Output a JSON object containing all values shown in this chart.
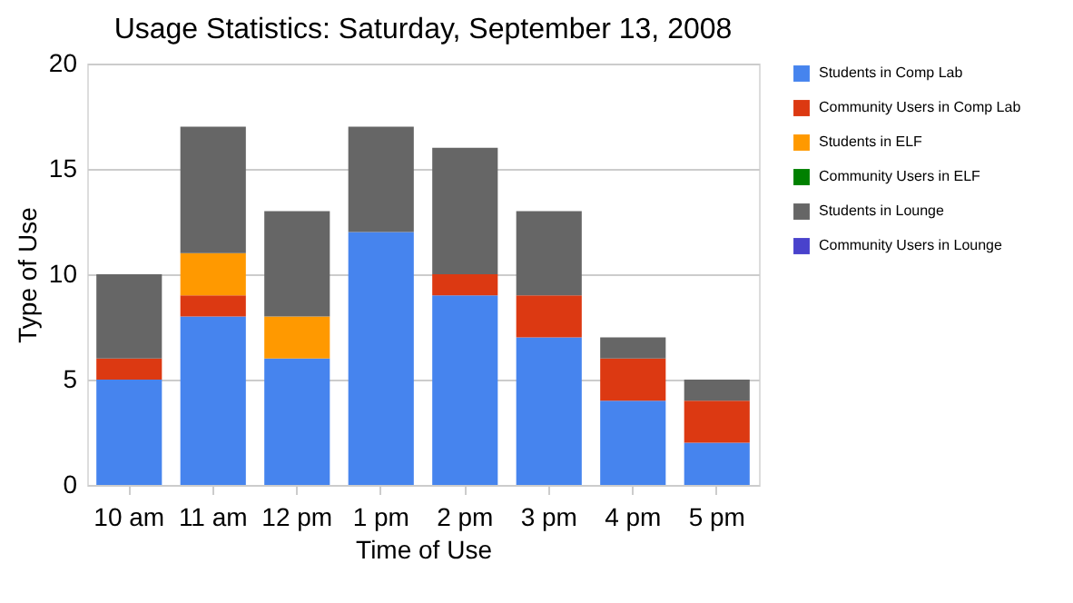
{
  "chart_data": {
    "type": "bar",
    "stacked": true,
    "title": "Usage Statistics: Saturday, September 13, 2008",
    "xlabel": "Time of Use",
    "ylabel": "Type of Use",
    "categories": [
      "10 am",
      "11 am",
      "12 pm",
      "1 pm",
      "2 pm",
      "3 pm",
      "4 pm",
      "5 pm"
    ],
    "series": [
      {
        "name": "Students in Comp Lab",
        "color": "#4684ee",
        "values": [
          5,
          8,
          6,
          12,
          9,
          7,
          4,
          2
        ]
      },
      {
        "name": "Community Users in Comp Lab",
        "color": "#dc3912",
        "values": [
          1,
          1,
          0,
          0,
          1,
          2,
          2,
          2
        ]
      },
      {
        "name": "Students in ELF",
        "color": "#ff9900",
        "values": [
          0,
          2,
          2,
          0,
          0,
          0,
          0,
          0
        ]
      },
      {
        "name": "Community Users in ELF",
        "color": "#008000",
        "values": [
          0,
          0,
          0,
          0,
          0,
          0,
          0,
          0
        ]
      },
      {
        "name": "Students in Lounge",
        "color": "#666666",
        "values": [
          4,
          6,
          5,
          5,
          6,
          4,
          1,
          1
        ]
      },
      {
        "name": "Community Users in Lounge",
        "color": "#4942cc",
        "values": [
          0,
          0,
          0,
          0,
          0,
          0,
          0,
          0
        ]
      }
    ],
    "ylim": [
      0,
      20
    ],
    "yticks": [
      0,
      5,
      10,
      15,
      20
    ],
    "grid": "y",
    "legend": "right"
  }
}
